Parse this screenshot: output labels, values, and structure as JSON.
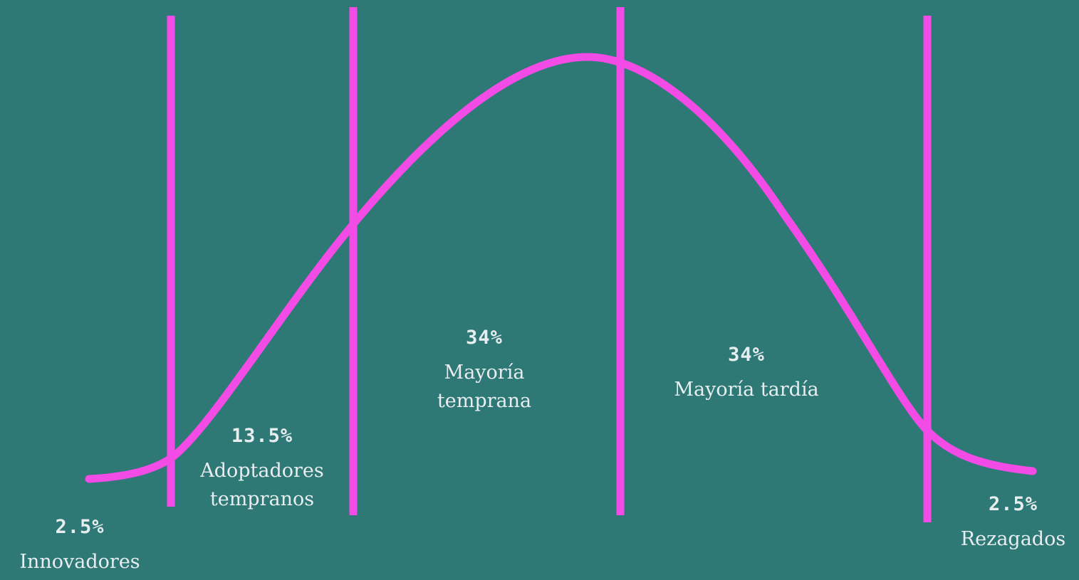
{
  "colors": {
    "background": "#2e7875",
    "curve": "#f24be6",
    "text": "#e8eef0"
  },
  "segments": [
    {
      "percent": "2.5%",
      "name": "Innovadores"
    },
    {
      "percent": "13.5%",
      "name_line1": "Adoptadores",
      "name_line2": "tempranos"
    },
    {
      "percent": "34%",
      "name_line1": "Mayoría",
      "name_line2": "temprana"
    },
    {
      "percent": "34%",
      "name": "Mayoría tardía"
    },
    {
      "percent": "2.5%",
      "name": "Rezagados"
    }
  ]
}
